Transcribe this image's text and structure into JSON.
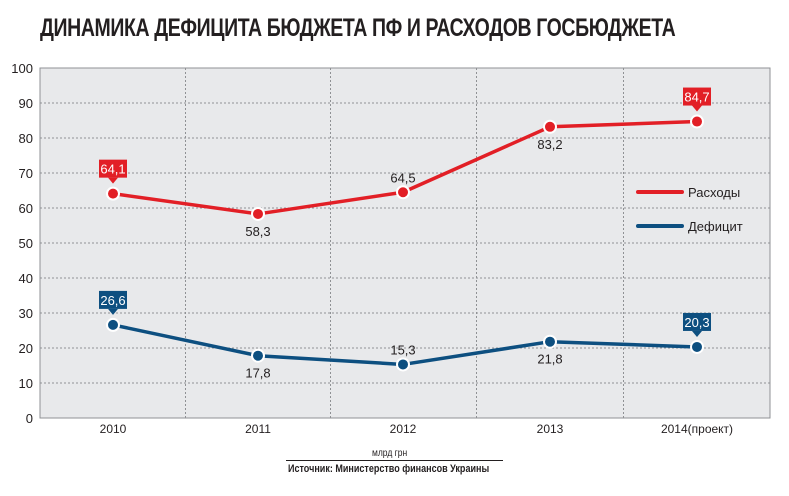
{
  "title": "ДИНАМИКА ДЕФИЦИТА БЮДЖЕТА ПФ И РАСХОДОВ ГОСБЮДЖЕТА",
  "unit_label": "млрд грн",
  "source": "Источник: Министерство финансов Украины",
  "chart_data": {
    "type": "line",
    "categories": [
      "2010",
      "2011",
      "2012",
      "2013",
      "2014(проект)"
    ],
    "ylim": [
      0,
      100
    ],
    "yticks": [
      0,
      10,
      20,
      30,
      40,
      50,
      60,
      70,
      80,
      90,
      100
    ],
    "grid": true,
    "legend_position": "right",
    "series": [
      {
        "name": "Расходы",
        "color": "#e21f26",
        "values": [
          64.1,
          58.3,
          64.5,
          83.2,
          84.7
        ],
        "value_labels": [
          "64,1",
          "58,3",
          "64,5",
          "83,2",
          "84,7"
        ],
        "boxed_labels": [
          true,
          false,
          false,
          false,
          true
        ],
        "label_positions": [
          "above",
          "below",
          "above",
          "below",
          "above"
        ]
      },
      {
        "name": "Дефицит",
        "color": "#0d4f80",
        "values": [
          26.6,
          17.8,
          15.3,
          21.8,
          20.3
        ],
        "value_labels": [
          "26,6",
          "17,8",
          "15,3",
          "21,8",
          "20,3"
        ],
        "boxed_labels": [
          true,
          false,
          false,
          false,
          true
        ],
        "label_positions": [
          "above",
          "below",
          "above",
          "below",
          "above"
        ]
      }
    ]
  }
}
